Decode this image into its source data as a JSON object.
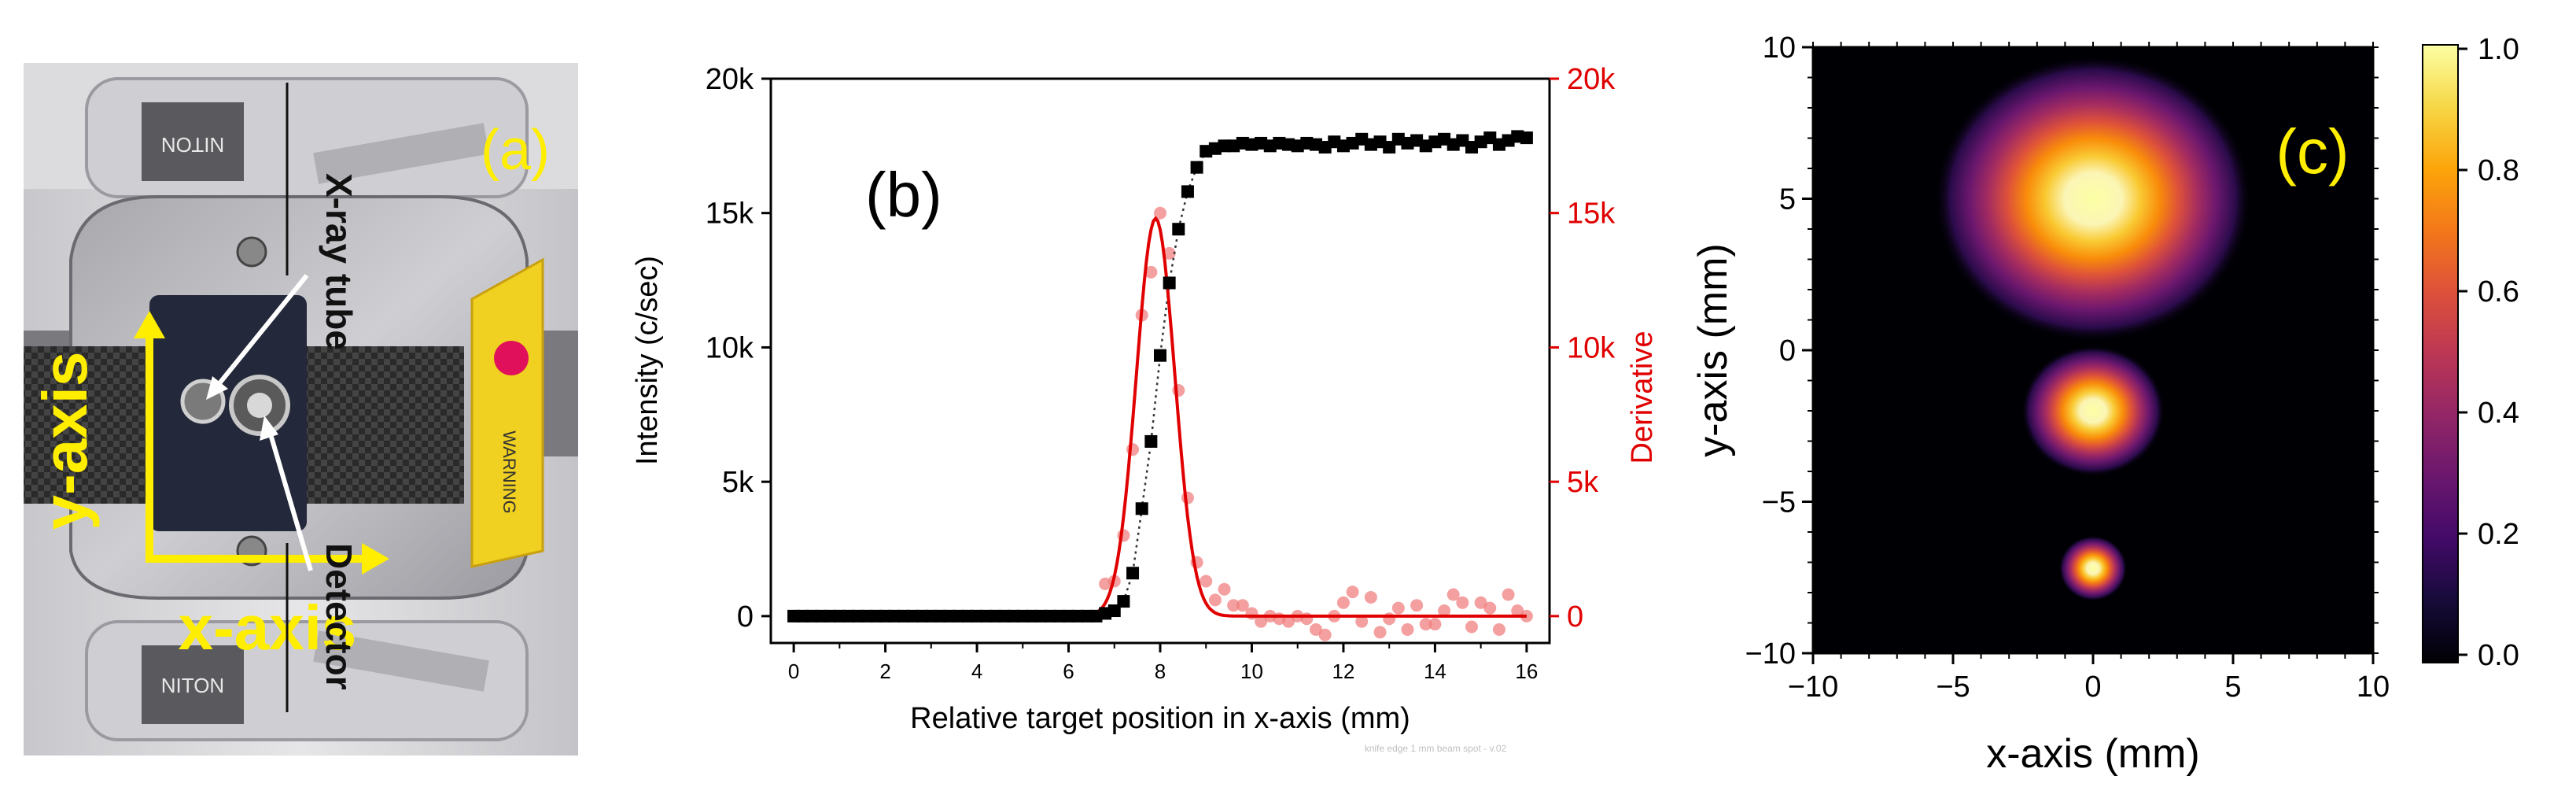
{
  "panel_a": {
    "label": "(a)",
    "x_axis_label": "x-axis",
    "y_axis_label": "y-axis",
    "callout_tube": "X-ray tube",
    "callout_detector": "Detector",
    "sticker_text": "WARNING",
    "brand_text": "NITON",
    "colors": {
      "annotation": "#ffee00",
      "body": "#d9d9db",
      "sticker": "#f0d020"
    }
  },
  "chart_data": [
    {
      "type": "scatter",
      "panel_label": "(b)",
      "xlabel": "Relative target position in x-axis  (mm)",
      "ylabel": "Intensity (c/sec)",
      "ylabel_right": "Derivative",
      "xlim": [
        -0.5,
        16.5
      ],
      "ylim": [
        -1000,
        20000
      ],
      "xticks": [
        0,
        2,
        4,
        6,
        8,
        10,
        12,
        14,
        16
      ],
      "yticks": [
        0,
        5000,
        10000,
        15000,
        20000
      ],
      "ytick_labels": [
        "0",
        "5k",
        "10k",
        "15k",
        "20k"
      ],
      "ytick_labels_right": [
        "0",
        "5k",
        "10k",
        "15k",
        "20k"
      ],
      "watermark": "knife edge 1 mm beam spot - v.02",
      "series": [
        {
          "name": "Intensity",
          "color": "#000000",
          "marker": "square",
          "x": [
            0,
            0.2,
            0.4,
            0.6,
            0.8,
            1.0,
            1.2,
            1.4,
            1.6,
            1.8,
            2.0,
            2.2,
            2.4,
            2.6,
            2.8,
            3.0,
            3.2,
            3.4,
            3.6,
            3.8,
            4.0,
            4.2,
            4.4,
            4.6,
            4.8,
            5.0,
            5.2,
            5.4,
            5.6,
            5.8,
            6.0,
            6.2,
            6.4,
            6.6,
            6.8,
            7.0,
            7.2,
            7.4,
            7.6,
            7.8,
            8.0,
            8.2,
            8.4,
            8.6,
            8.8,
            9.0,
            9.2,
            9.4,
            9.6,
            9.8,
            10.0,
            10.2,
            10.4,
            10.6,
            10.8,
            11.0,
            11.2,
            11.4,
            11.6,
            11.8,
            12.0,
            12.2,
            12.4,
            12.6,
            12.8,
            13.0,
            13.2,
            13.4,
            13.6,
            13.8,
            14.0,
            14.2,
            14.4,
            14.6,
            14.8,
            15.0,
            15.2,
            15.4,
            15.6,
            15.8,
            16.0
          ],
          "y": [
            0,
            0,
            0,
            0,
            0,
            0,
            0,
            0,
            0,
            0,
            0,
            0,
            0,
            0,
            0,
            0,
            0,
            0,
            0,
            0,
            0,
            0,
            0,
            0,
            0,
            0,
            0,
            0,
            0,
            0,
            0,
            0,
            0,
            0,
            100,
            200,
            550,
            1600,
            4000,
            6500,
            9700,
            12400,
            14400,
            15800,
            16700,
            17300,
            17400,
            17500,
            17500,
            17600,
            17550,
            17600,
            17500,
            17600,
            17550,
            17500,
            17600,
            17550,
            17450,
            17650,
            17500,
            17600,
            17750,
            17550,
            17650,
            17450,
            17750,
            17600,
            17700,
            17500,
            17650,
            17750,
            17550,
            17700,
            17450,
            17650,
            17800,
            17550,
            17700,
            17850,
            17800
          ]
        },
        {
          "name": "Derivative fit",
          "color": "#e00000",
          "style": "line",
          "peak_x": 7.9,
          "peak_y": 14800,
          "sigma": 0.42
        },
        {
          "name": "Derivative",
          "color": "#f08080",
          "marker": "circle",
          "x": [
            0,
            0.2,
            0.4,
            0.6,
            0.8,
            1.0,
            1.2,
            1.4,
            1.6,
            1.8,
            2.0,
            2.2,
            2.4,
            2.6,
            2.8,
            3.0,
            3.2,
            3.4,
            3.6,
            3.8,
            4.0,
            4.2,
            4.4,
            4.6,
            4.8,
            5.0,
            5.2,
            5.4,
            5.6,
            5.8,
            6.0,
            6.2,
            6.4,
            6.6,
            6.8,
            7.0,
            7.2,
            7.4,
            7.6,
            7.8,
            8.0,
            8.2,
            8.4,
            8.6,
            8.8,
            9.0,
            9.2,
            9.4,
            9.6,
            9.8,
            10.0,
            10.2,
            10.4,
            10.6,
            10.8,
            11.0,
            11.2,
            11.4,
            11.6,
            11.8,
            12.0,
            12.2,
            12.4,
            12.6,
            12.8,
            13.0,
            13.2,
            13.4,
            13.6,
            13.8,
            14.0,
            14.2,
            14.4,
            14.6,
            14.8,
            15.0,
            15.2,
            15.4,
            15.6,
            15.8,
            16.0
          ],
          "y": [
            0,
            0,
            0,
            0,
            0,
            0,
            0,
            0,
            0,
            0,
            0,
            0,
            0,
            0,
            0,
            0,
            0,
            0,
            0,
            0,
            0,
            0,
            0,
            0,
            0,
            0,
            0,
            0,
            0,
            0,
            0,
            0,
            0,
            0,
            1200,
            1300,
            3000,
            6200,
            11200,
            12800,
            15000,
            13500,
            8400,
            4400,
            2000,
            1300,
            600,
            1000,
            400,
            400,
            100,
            -200,
            0,
            -100,
            -200,
            0,
            -100,
            -500,
            -700,
            0,
            500,
            900,
            -200,
            700,
            -600,
            -100,
            300,
            -500,
            400,
            -300,
            -300,
            200,
            800,
            500,
            -400,
            500,
            300,
            -500,
            800,
            200,
            0
          ]
        }
      ]
    },
    {
      "type": "heatmap",
      "panel_label": "(c)",
      "xlabel": "x-axis (mm)",
      "ylabel": "y-axis (mm)",
      "xlim": [
        -10,
        10
      ],
      "ylim": [
        -10,
        10
      ],
      "xticks": [
        -10,
        -5,
        0,
        5,
        10
      ],
      "yticks": [
        -10,
        -5,
        0,
        5,
        10
      ],
      "xtick_labels": [
        "−10",
        "−5",
        "0",
        "5",
        "10"
      ],
      "ytick_labels": [
        "−10",
        "−5",
        "0",
        "5",
        "10"
      ],
      "colormap": "inferno",
      "colorbar_range": [
        0,
        1
      ],
      "colorbar_ticks": [
        "0.0",
        "0.2",
        "0.4",
        "0.6",
        "0.8",
        "1.0"
      ],
      "spots": [
        {
          "x": 0,
          "y": 5,
          "sigma_x": 2.1,
          "sigma_y": 1.75,
          "peak": 1.0
        },
        {
          "x": 0,
          "y": -2,
          "sigma_x": 0.95,
          "sigma_y": 0.8,
          "peak": 1.0
        },
        {
          "x": 0,
          "y": -7.2,
          "sigma_x": 0.45,
          "sigma_y": 0.4,
          "peak": 1.0
        }
      ]
    }
  ]
}
